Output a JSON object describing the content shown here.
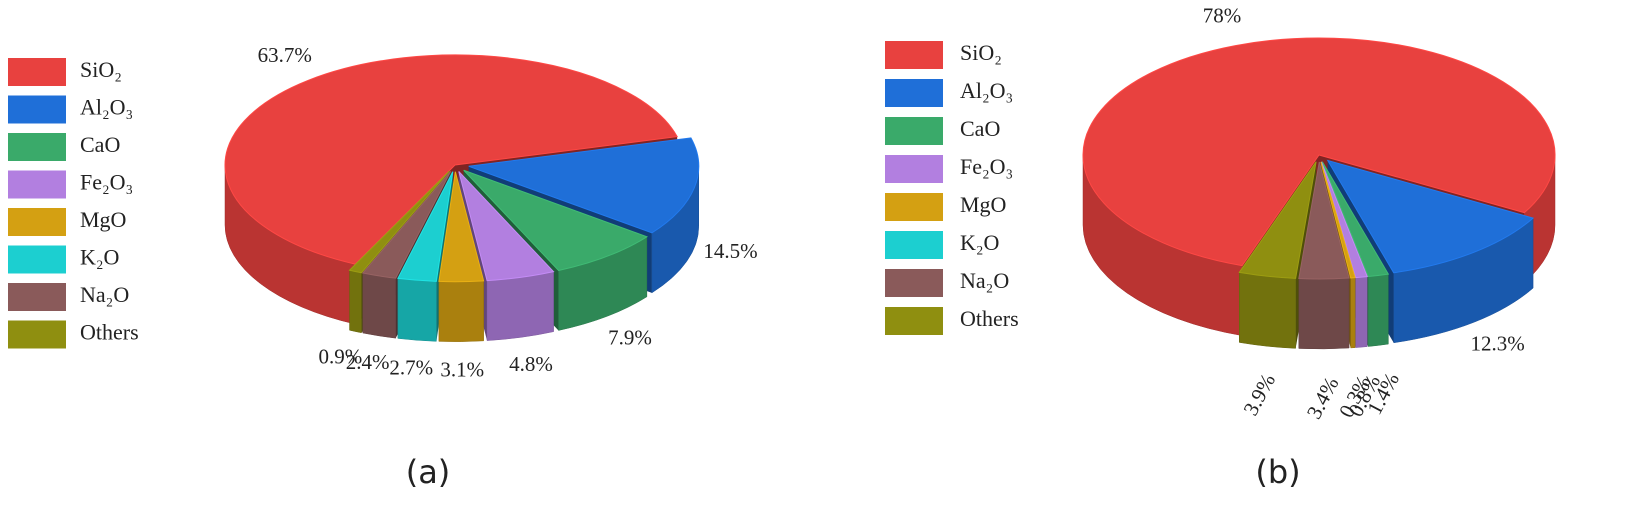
{
  "chart_data": [
    {
      "type": "pie",
      "caption": "(a)",
      "categories": [
        "SiO₂",
        "Al₂O₃",
        "CaO",
        "Fe₂O₃",
        "MgO",
        "K₂O",
        "Na₂O",
        "Others"
      ],
      "values": [
        63.7,
        14.5,
        7.9,
        4.8,
        3.1,
        2.7,
        2.4,
        0.9
      ],
      "value_labels": [
        "63.7%",
        "14.5%",
        "7.9%",
        "4.8%",
        "3.1%",
        "2.7%",
        "2.4%",
        "0.9%"
      ],
      "colors": [
        "#e8413f",
        "#1f6fd8",
        "#3aaa6a",
        "#b27fe0",
        "#d4a012",
        "#1ccfd0",
        "#8a5a5a",
        "#8f8f10"
      ]
    },
    {
      "type": "pie",
      "caption": "(b)",
      "categories": [
        "SiO₂",
        "Al₂O₃",
        "CaO",
        "Fe₂O₃",
        "MgO",
        "K₂O",
        "Na₂O",
        "Others"
      ],
      "values": [
        78,
        12.3,
        1.4,
        0.8,
        0.3,
        null,
        3.4,
        3.9
      ],
      "value_labels": [
        "78%",
        "12.3%",
        "1.4%",
        "0.8%",
        "0.3%",
        null,
        "3.4%",
        "3.9%"
      ],
      "colors": [
        "#e8413f",
        "#1f6fd8",
        "#3aaa6a",
        "#b27fe0",
        "#d4a012",
        "#1ccfd0",
        "#8a5a5a",
        "#8f8f10"
      ]
    }
  ]
}
